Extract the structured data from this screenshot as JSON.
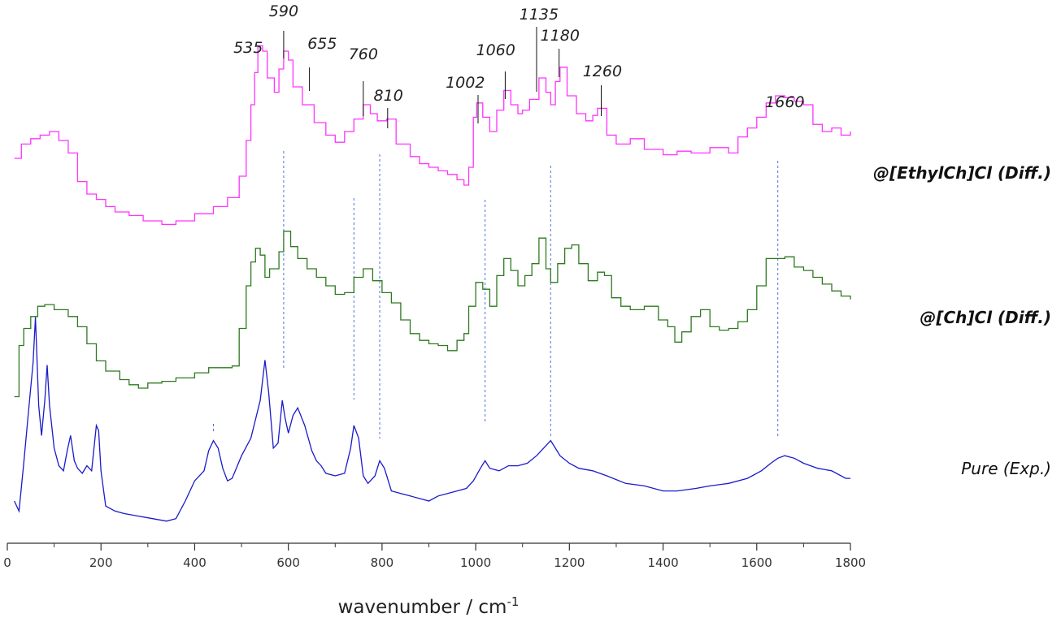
{
  "chart_data": {
    "type": "line",
    "xlabel": "wavenumber / cm",
    "xlabel_superscript": "-1",
    "xlim": [
      0,
      1800
    ],
    "x_ticks": [
      0,
      200,
      400,
      600,
      800,
      1000,
      1200,
      1400,
      1600,
      1800
    ],
    "y_axis_shown": false,
    "grid": false,
    "legend": "labels at right end of each trace",
    "peak_labels": [
      "535",
      "590",
      "655",
      "760",
      "810",
      "1002",
      "1060",
      "1135",
      "1180",
      "1260",
      "1660"
    ],
    "peak_positions": [
      535,
      590,
      655,
      760,
      810,
      1002,
      1060,
      1135,
      1180,
      1260,
      1660
    ],
    "guide_lines_x": [
      590,
      740,
      795,
      1020,
      1160,
      1645
    ],
    "series": [
      {
        "name": "@[EthylCh]Cl (Diff.)",
        "color": "#ff33ff",
        "style": "step",
        "points": [
          [
            15,
            7.5
          ],
          [
            30,
            8.3
          ],
          [
            50,
            8.6
          ],
          [
            70,
            8.8
          ],
          [
            90,
            9.0
          ],
          [
            110,
            8.5
          ],
          [
            130,
            7.8
          ],
          [
            150,
            6.2
          ],
          [
            170,
            5.5
          ],
          [
            190,
            5.2
          ],
          [
            210,
            4.8
          ],
          [
            230,
            4.5
          ],
          [
            260,
            4.3
          ],
          [
            290,
            4.0
          ],
          [
            330,
            3.8
          ],
          [
            360,
            4.0
          ],
          [
            400,
            4.4
          ],
          [
            440,
            4.8
          ],
          [
            470,
            5.3
          ],
          [
            495,
            6.5
          ],
          [
            510,
            8.5
          ],
          [
            520,
            10.5
          ],
          [
            528,
            12.3
          ],
          [
            535,
            13.8
          ],
          [
            545,
            13.5
          ],
          [
            555,
            12.0
          ],
          [
            570,
            11.2
          ],
          [
            580,
            12.5
          ],
          [
            590,
            13.5
          ],
          [
            600,
            13.0
          ],
          [
            610,
            11.5
          ],
          [
            630,
            10.5
          ],
          [
            655,
            9.5
          ],
          [
            680,
            8.8
          ],
          [
            700,
            8.4
          ],
          [
            720,
            9.0
          ],
          [
            740,
            9.7
          ],
          [
            760,
            10.5
          ],
          [
            775,
            10.0
          ],
          [
            790,
            9.6
          ],
          [
            810,
            9.7
          ],
          [
            830,
            8.3
          ],
          [
            860,
            7.6
          ],
          [
            880,
            7.2
          ],
          [
            900,
            7.0
          ],
          [
            920,
            6.8
          ],
          [
            940,
            6.6
          ],
          [
            960,
            6.3
          ],
          [
            975,
            6.0
          ],
          [
            985,
            7.0
          ],
          [
            995,
            9.8
          ],
          [
            1002,
            10.6
          ],
          [
            1015,
            9.8
          ],
          [
            1030,
            9.0
          ],
          [
            1045,
            10.2
          ],
          [
            1060,
            11.3
          ],
          [
            1075,
            10.5
          ],
          [
            1090,
            10.0
          ],
          [
            1100,
            10.2
          ],
          [
            1115,
            10.8
          ],
          [
            1135,
            12.0
          ],
          [
            1150,
            11.2
          ],
          [
            1160,
            10.5
          ],
          [
            1170,
            11.8
          ],
          [
            1180,
            12.6
          ],
          [
            1195,
            11.0
          ],
          [
            1215,
            10.0
          ],
          [
            1235,
            9.6
          ],
          [
            1250,
            9.9
          ],
          [
            1260,
            10.3
          ],
          [
            1280,
            8.8
          ],
          [
            1300,
            8.3
          ],
          [
            1330,
            8.6
          ],
          [
            1360,
            8.0
          ],
          [
            1400,
            7.7
          ],
          [
            1430,
            7.9
          ],
          [
            1460,
            7.8
          ],
          [
            1500,
            8.1
          ],
          [
            1540,
            7.8
          ],
          [
            1560,
            8.7
          ],
          [
            1580,
            9.2
          ],
          [
            1600,
            9.8
          ],
          [
            1620,
            10.6
          ],
          [
            1640,
            11.0
          ],
          [
            1660,
            10.9
          ],
          [
            1680,
            10.7
          ],
          [
            1700,
            10.5
          ],
          [
            1720,
            9.4
          ],
          [
            1740,
            9.0
          ],
          [
            1760,
            9.2
          ],
          [
            1780,
            8.8
          ],
          [
            1800,
            9.0
          ]
        ]
      },
      {
        "name": "@[Ch]Cl (Diff.)",
        "color": "#2d7a1f",
        "style": "step",
        "points": [
          [
            15,
            1.5
          ],
          [
            25,
            4.5
          ],
          [
            35,
            5.5
          ],
          [
            50,
            6.2
          ],
          [
            65,
            6.8
          ],
          [
            80,
            6.9
          ],
          [
            100,
            6.6
          ],
          [
            130,
            6.2
          ],
          [
            150,
            5.6
          ],
          [
            170,
            4.6
          ],
          [
            190,
            3.6
          ],
          [
            210,
            3.0
          ],
          [
            240,
            2.5
          ],
          [
            260,
            2.2
          ],
          [
            280,
            2.0
          ],
          [
            300,
            2.3
          ],
          [
            330,
            2.4
          ],
          [
            360,
            2.6
          ],
          [
            400,
            2.9
          ],
          [
            430,
            3.2
          ],
          [
            460,
            3.2
          ],
          [
            480,
            3.3
          ],
          [
            495,
            5.5
          ],
          [
            510,
            8.0
          ],
          [
            520,
            9.4
          ],
          [
            530,
            10.2
          ],
          [
            540,
            9.8
          ],
          [
            550,
            8.5
          ],
          [
            560,
            9.0
          ],
          [
            580,
            10.0
          ],
          [
            590,
            11.2
          ],
          [
            605,
            10.3
          ],
          [
            620,
            9.6
          ],
          [
            640,
            9.0
          ],
          [
            660,
            8.5
          ],
          [
            680,
            8.0
          ],
          [
            700,
            7.5
          ],
          [
            720,
            7.6
          ],
          [
            740,
            8.5
          ],
          [
            760,
            9.0
          ],
          [
            780,
            8.3
          ],
          [
            800,
            7.6
          ],
          [
            820,
            7.0
          ],
          [
            840,
            6.0
          ],
          [
            860,
            5.2
          ],
          [
            880,
            4.8
          ],
          [
            900,
            4.6
          ],
          [
            920,
            4.5
          ],
          [
            940,
            4.2
          ],
          [
            960,
            4.8
          ],
          [
            975,
            5.2
          ],
          [
            985,
            6.8
          ],
          [
            1000,
            8.2
          ],
          [
            1015,
            7.8
          ],
          [
            1030,
            6.8
          ],
          [
            1045,
            8.6
          ],
          [
            1060,
            9.6
          ],
          [
            1075,
            8.9
          ],
          [
            1090,
            8.0
          ],
          [
            1105,
            8.6
          ],
          [
            1120,
            9.3
          ],
          [
            1135,
            10.8
          ],
          [
            1150,
            9.0
          ],
          [
            1160,
            8.2
          ],
          [
            1175,
            9.3
          ],
          [
            1190,
            10.2
          ],
          [
            1205,
            10.4
          ],
          [
            1220,
            9.3
          ],
          [
            1240,
            8.3
          ],
          [
            1260,
            8.8
          ],
          [
            1275,
            8.6
          ],
          [
            1290,
            7.3
          ],
          [
            1310,
            6.8
          ],
          [
            1330,
            6.6
          ],
          [
            1360,
            6.8
          ],
          [
            1390,
            6.0
          ],
          [
            1410,
            5.6
          ],
          [
            1425,
            4.7
          ],
          [
            1440,
            5.3
          ],
          [
            1460,
            6.2
          ],
          [
            1480,
            6.6
          ],
          [
            1500,
            5.6
          ],
          [
            1520,
            5.4
          ],
          [
            1540,
            5.5
          ],
          [
            1560,
            5.9
          ],
          [
            1580,
            6.6
          ],
          [
            1600,
            8.0
          ],
          [
            1620,
            9.6
          ],
          [
            1640,
            9.6
          ],
          [
            1660,
            9.7
          ],
          [
            1680,
            9.1
          ],
          [
            1700,
            8.9
          ],
          [
            1720,
            8.5
          ],
          [
            1740,
            8.1
          ],
          [
            1760,
            7.7
          ],
          [
            1780,
            7.4
          ],
          [
            1800,
            7.2
          ]
        ]
      },
      {
        "name": "Pure (Exp.)",
        "color": "#1a1acc",
        "style": "line",
        "points": [
          [
            15,
            1.0
          ],
          [
            25,
            0.6
          ],
          [
            35,
            2.5
          ],
          [
            45,
            4.5
          ],
          [
            55,
            6.5
          ],
          [
            60,
            8.3
          ],
          [
            67,
            4.8
          ],
          [
            73,
            3.6
          ],
          [
            80,
            5.0
          ],
          [
            85,
            6.4
          ],
          [
            90,
            4.8
          ],
          [
            100,
            3.1
          ],
          [
            110,
            2.4
          ],
          [
            120,
            2.2
          ],
          [
            128,
            3.0
          ],
          [
            135,
            3.6
          ],
          [
            143,
            2.6
          ],
          [
            150,
            2.3
          ],
          [
            160,
            2.1
          ],
          [
            170,
            2.4
          ],
          [
            180,
            2.2
          ],
          [
            190,
            4.0
          ],
          [
            195,
            3.8
          ],
          [
            200,
            2.2
          ],
          [
            210,
            0.8
          ],
          [
            230,
            0.6
          ],
          [
            250,
            0.5
          ],
          [
            280,
            0.4
          ],
          [
            310,
            0.3
          ],
          [
            340,
            0.2
          ],
          [
            360,
            0.3
          ],
          [
            380,
            1.0
          ],
          [
            400,
            1.8
          ],
          [
            420,
            2.2
          ],
          [
            430,
            3.0
          ],
          [
            440,
            3.4
          ],
          [
            450,
            3.1
          ],
          [
            460,
            2.3
          ],
          [
            470,
            1.8
          ],
          [
            480,
            1.9
          ],
          [
            500,
            2.8
          ],
          [
            520,
            3.5
          ],
          [
            540,
            5.0
          ],
          [
            550,
            6.6
          ],
          [
            558,
            5.3
          ],
          [
            568,
            3.1
          ],
          [
            578,
            3.3
          ],
          [
            587,
            5.0
          ],
          [
            593,
            4.3
          ],
          [
            600,
            3.7
          ],
          [
            610,
            4.4
          ],
          [
            620,
            4.7
          ],
          [
            635,
            4.0
          ],
          [
            650,
            3.0
          ],
          [
            660,
            2.6
          ],
          [
            670,
            2.4
          ],
          [
            680,
            2.1
          ],
          [
            700,
            2.0
          ],
          [
            720,
            2.1
          ],
          [
            733,
            3.1
          ],
          [
            740,
            4.0
          ],
          [
            750,
            3.5
          ],
          [
            760,
            2.0
          ],
          [
            770,
            1.7
          ],
          [
            785,
            2.0
          ],
          [
            795,
            2.6
          ],
          [
            805,
            2.3
          ],
          [
            820,
            1.4
          ],
          [
            840,
            1.3
          ],
          [
            860,
            1.2
          ],
          [
            880,
            1.1
          ],
          [
            900,
            1.0
          ],
          [
            920,
            1.2
          ],
          [
            940,
            1.3
          ],
          [
            960,
            1.4
          ],
          [
            980,
            1.5
          ],
          [
            995,
            1.8
          ],
          [
            1010,
            2.3
          ],
          [
            1020,
            2.6
          ],
          [
            1030,
            2.3
          ],
          [
            1050,
            2.2
          ],
          [
            1070,
            2.4
          ],
          [
            1090,
            2.4
          ],
          [
            1110,
            2.5
          ],
          [
            1130,
            2.8
          ],
          [
            1145,
            3.1
          ],
          [
            1160,
            3.4
          ],
          [
            1170,
            3.1
          ],
          [
            1180,
            2.8
          ],
          [
            1200,
            2.5
          ],
          [
            1220,
            2.3
          ],
          [
            1250,
            2.2
          ],
          [
            1280,
            2.0
          ],
          [
            1320,
            1.7
          ],
          [
            1360,
            1.6
          ],
          [
            1400,
            1.4
          ],
          [
            1430,
            1.4
          ],
          [
            1470,
            1.5
          ],
          [
            1500,
            1.6
          ],
          [
            1540,
            1.7
          ],
          [
            1580,
            1.9
          ],
          [
            1610,
            2.2
          ],
          [
            1630,
            2.5
          ],
          [
            1645,
            2.7
          ],
          [
            1660,
            2.8
          ],
          [
            1680,
            2.7
          ],
          [
            1700,
            2.5
          ],
          [
            1730,
            2.3
          ],
          [
            1760,
            2.2
          ],
          [
            1790,
            1.9
          ],
          [
            1800,
            1.9
          ]
        ]
      }
    ]
  }
}
